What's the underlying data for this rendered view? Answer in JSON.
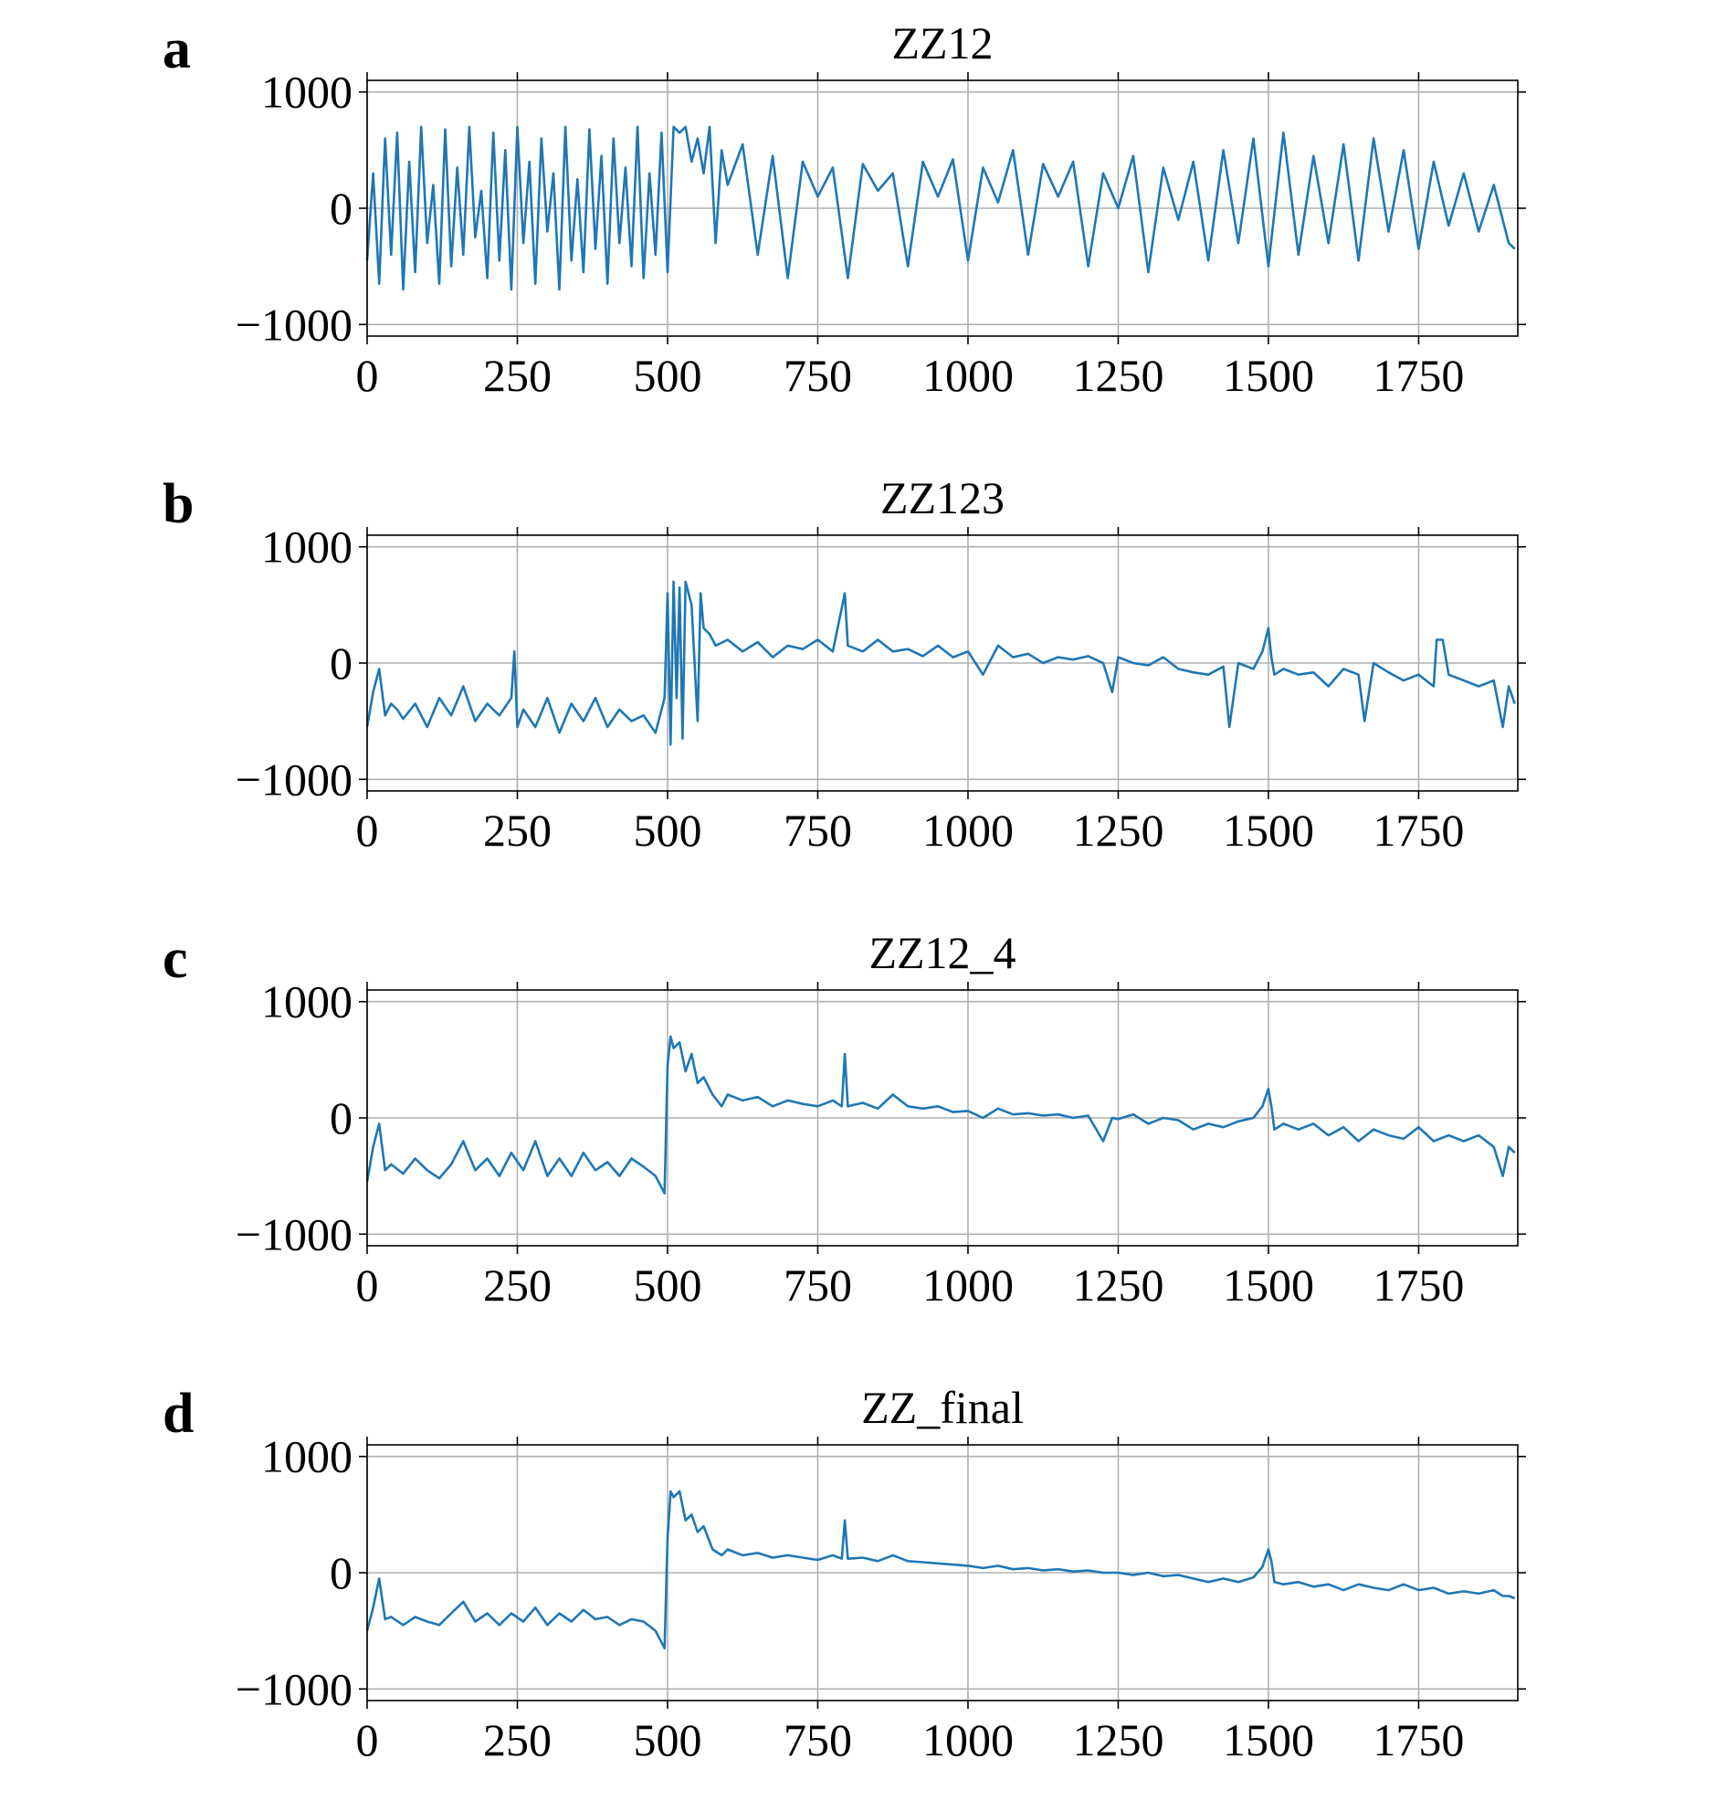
{
  "figure": {
    "color": "#1f77b4",
    "panels": [
      {
        "letter": "a",
        "title": "ZZ12",
        "xlim": [
          0,
          1915
        ],
        "ylim": [
          -1100,
          1100
        ],
        "xticks": [
          0,
          250,
          500,
          750,
          1000,
          1250,
          1500,
          1750
        ],
        "xtick_labels": [
          "0",
          "250",
          "500",
          "750",
          "1000",
          "1250",
          "1500",
          "1750"
        ],
        "yticks": [
          -1000,
          0,
          1000
        ],
        "ytick_labels": [
          "−1000",
          "0",
          "1000"
        ],
        "grid": true
      },
      {
        "letter": "b",
        "title": "ZZ123",
        "xlim": [
          0,
          1915
        ],
        "ylim": [
          -1100,
          1100
        ],
        "xticks": [
          0,
          250,
          500,
          750,
          1000,
          1250,
          1500,
          1750
        ],
        "xtick_labels": [
          "0",
          "250",
          "500",
          "750",
          "1000",
          "1250",
          "1500",
          "1750"
        ],
        "yticks": [
          -1000,
          0,
          1000
        ],
        "ytick_labels": [
          "−1000",
          "0",
          "1000"
        ],
        "grid": true
      },
      {
        "letter": "c",
        "title": "ZZ12_4",
        "xlim": [
          0,
          1915
        ],
        "ylim": [
          -1100,
          1100
        ],
        "xticks": [
          0,
          250,
          500,
          750,
          1000,
          1250,
          1500,
          1750
        ],
        "xtick_labels": [
          "0",
          "250",
          "500",
          "750",
          "1000",
          "1250",
          "1500",
          "1750"
        ],
        "yticks": [
          -1000,
          0,
          1000
        ],
        "ytick_labels": [
          "−1000",
          "0",
          "1000"
        ],
        "grid": true
      },
      {
        "letter": "d",
        "title": "ZZ_final",
        "xlim": [
          0,
          1915
        ],
        "ylim": [
          -1100,
          1100
        ],
        "xticks": [
          0,
          250,
          500,
          750,
          1000,
          1250,
          1500,
          1750
        ],
        "xtick_labels": [
          "0",
          "250",
          "500",
          "750",
          "1000",
          "1250",
          "1500",
          "1750"
        ],
        "yticks": [
          -1000,
          0,
          1000
        ],
        "ytick_labels": [
          "−1000",
          "0",
          "1000"
        ],
        "grid": true
      }
    ]
  },
  "chart_data": [
    {
      "type": "line",
      "title": "ZZ12",
      "xlabel": "",
      "ylabel": "",
      "xlim": [
        0,
        1915
      ],
      "ylim": [
        -1100,
        1100
      ],
      "grid": true,
      "series": [
        {
          "x": [
            0,
            10,
            20,
            30,
            40,
            50,
            60,
            70,
            80,
            90,
            100,
            110,
            120,
            130,
            140,
            150,
            160,
            170,
            180,
            190,
            200,
            210,
            220,
            230,
            240,
            250,
            260,
            270,
            280,
            290,
            300,
            310,
            320,
            330,
            340,
            350,
            360,
            370,
            380,
            390,
            400,
            410,
            420,
            430,
            440,
            450,
            460,
            470,
            480,
            490,
            500,
            510,
            520,
            530,
            540,
            550,
            560,
            570,
            580,
            590,
            600,
            625,
            650,
            675,
            700,
            725,
            750,
            775,
            800,
            825,
            850,
            875,
            900,
            925,
            950,
            975,
            1000,
            1025,
            1050,
            1075,
            1100,
            1125,
            1150,
            1175,
            1200,
            1225,
            1250,
            1275,
            1300,
            1325,
            1350,
            1375,
            1400,
            1425,
            1450,
            1475,
            1500,
            1525,
            1550,
            1575,
            1600,
            1625,
            1650,
            1675,
            1700,
            1725,
            1750,
            1775,
            1800,
            1825,
            1850,
            1875,
            1900,
            1910
          ],
          "y": [
            -450,
            300,
            -650,
            600,
            -400,
            650,
            -700,
            400,
            -550,
            700,
            -300,
            200,
            -650,
            680,
            -500,
            350,
            -400,
            700,
            -250,
            150,
            -600,
            650,
            -450,
            500,
            -700,
            700,
            -300,
            400,
            -650,
            600,
            -200,
            300,
            -700,
            700,
            -450,
            250,
            -550,
            680,
            -350,
            450,
            -650,
            600,
            -300,
            350,
            -500,
            700,
            -600,
            300,
            -400,
            650,
            -550,
            700,
            650,
            700,
            400,
            600,
            300,
            700,
            -300,
            500,
            200,
            550,
            -400,
            450,
            -600,
            400,
            100,
            350,
            -600,
            380,
            150,
            300,
            -500,
            400,
            100,
            420,
            -450,
            350,
            50,
            500,
            -400,
            380,
            100,
            400,
            -500,
            300,
            0,
            450,
            -550,
            350,
            -100,
            400,
            -450,
            500,
            -300,
            600,
            -500,
            650,
            -400,
            450,
            -300,
            550,
            -450,
            600,
            -200,
            500,
            -350,
            400,
            -150,
            300,
            -200,
            200,
            -300,
            -350
          ]
        }
      ]
    },
    {
      "type": "line",
      "title": "ZZ123",
      "xlabel": "",
      "ylabel": "",
      "xlim": [
        0,
        1915
      ],
      "ylim": [
        -1100,
        1100
      ],
      "grid": true,
      "series": [
        {
          "x": [
            0,
            10,
            20,
            30,
            40,
            50,
            60,
            80,
            100,
            120,
            140,
            160,
            180,
            200,
            220,
            240,
            245,
            250,
            260,
            280,
            300,
            320,
            340,
            360,
            380,
            400,
            420,
            440,
            460,
            480,
            495,
            500,
            505,
            510,
            515,
            520,
            525,
            530,
            540,
            550,
            555,
            560,
            570,
            580,
            600,
            625,
            650,
            675,
            700,
            725,
            750,
            775,
            795,
            800,
            825,
            850,
            875,
            900,
            925,
            950,
            975,
            1000,
            1025,
            1050,
            1075,
            1100,
            1125,
            1150,
            1175,
            1200,
            1225,
            1240,
            1250,
            1275,
            1300,
            1325,
            1350,
            1375,
            1400,
            1425,
            1435,
            1450,
            1475,
            1490,
            1500,
            1505,
            1510,
            1525,
            1550,
            1575,
            1600,
            1625,
            1650,
            1660,
            1675,
            1700,
            1725,
            1750,
            1775,
            1780,
            1790,
            1800,
            1825,
            1850,
            1875,
            1890,
            1900,
            1910
          ],
          "y": [
            -550,
            -250,
            -50,
            -450,
            -350,
            -400,
            -480,
            -350,
            -550,
            -300,
            -450,
            -200,
            -500,
            -350,
            -450,
            -300,
            100,
            -550,
            -400,
            -550,
            -300,
            -600,
            -350,
            -500,
            -300,
            -550,
            -400,
            -500,
            -450,
            -600,
            -300,
            600,
            -700,
            700,
            -300,
            650,
            -650,
            700,
            500,
            -500,
            600,
            300,
            250,
            150,
            200,
            100,
            180,
            50,
            150,
            120,
            200,
            100,
            600,
            150,
            100,
            200,
            100,
            120,
            60,
            150,
            50,
            100,
            -100,
            150,
            50,
            80,
            0,
            50,
            30,
            60,
            0,
            -250,
            50,
            0,
            -20,
            50,
            -50,
            -80,
            -100,
            -30,
            -550,
            0,
            -50,
            100,
            300,
            50,
            -100,
            -50,
            -100,
            -80,
            -200,
            -50,
            -100,
            -500,
            0,
            -80,
            -150,
            -100,
            -200,
            200,
            200,
            -100,
            -150,
            -200,
            -150,
            -550,
            -200,
            -350
          ]
        }
      ]
    },
    {
      "type": "line",
      "title": "ZZ12_4",
      "xlabel": "",
      "ylabel": "",
      "xlim": [
        0,
        1915
      ],
      "ylim": [
        -1100,
        1100
      ],
      "grid": true,
      "series": [
        {
          "x": [
            0,
            10,
            20,
            30,
            40,
            60,
            80,
            100,
            120,
            140,
            160,
            180,
            200,
            220,
            240,
            260,
            280,
            300,
            320,
            340,
            360,
            380,
            400,
            420,
            440,
            460,
            480,
            495,
            500,
            505,
            510,
            520,
            530,
            540,
            550,
            560,
            575,
            590,
            600,
            625,
            650,
            675,
            700,
            725,
            750,
            775,
            790,
            795,
            800,
            825,
            850,
            875,
            900,
            925,
            950,
            975,
            1000,
            1025,
            1050,
            1075,
            1100,
            1125,
            1150,
            1175,
            1200,
            1225,
            1240,
            1250,
            1275,
            1300,
            1325,
            1350,
            1375,
            1400,
            1425,
            1450,
            1475,
            1490,
            1500,
            1505,
            1510,
            1525,
            1550,
            1575,
            1600,
            1625,
            1650,
            1675,
            1700,
            1725,
            1750,
            1775,
            1800,
            1825,
            1850,
            1875,
            1890,
            1900,
            1910
          ],
          "y": [
            -550,
            -250,
            -50,
            -450,
            -400,
            -480,
            -350,
            -450,
            -520,
            -400,
            -200,
            -450,
            -350,
            -500,
            -300,
            -450,
            -200,
            -500,
            -350,
            -500,
            -300,
            -450,
            -380,
            -500,
            -350,
            -420,
            -500,
            -650,
            450,
            700,
            600,
            650,
            400,
            550,
            300,
            350,
            200,
            100,
            200,
            150,
            180,
            100,
            150,
            120,
            100,
            150,
            100,
            550,
            100,
            130,
            80,
            200,
            100,
            80,
            100,
            50,
            60,
            0,
            80,
            30,
            40,
            20,
            30,
            0,
            20,
            -200,
            0,
            -10,
            30,
            -50,
            0,
            -20,
            -100,
            -50,
            -80,
            -30,
            0,
            100,
            250,
            100,
            -100,
            -50,
            -100,
            -50,
            -150,
            -80,
            -200,
            -100,
            -150,
            -180,
            -80,
            -200,
            -150,
            -200,
            -150,
            -250,
            -500,
            -250,
            -300
          ]
        }
      ]
    },
    {
      "type": "line",
      "title": "ZZ_final",
      "xlabel": "",
      "ylabel": "",
      "xlim": [
        0,
        1915
      ],
      "ylim": [
        -1100,
        1100
      ],
      "grid": true,
      "series": [
        {
          "x": [
            0,
            10,
            20,
            30,
            40,
            60,
            80,
            100,
            120,
            140,
            160,
            180,
            200,
            220,
            240,
            260,
            280,
            300,
            320,
            340,
            360,
            380,
            400,
            420,
            440,
            460,
            480,
            495,
            500,
            505,
            510,
            520,
            530,
            540,
            550,
            560,
            575,
            590,
            600,
            625,
            650,
            675,
            700,
            725,
            750,
            775,
            790,
            795,
            800,
            825,
            850,
            875,
            900,
            925,
            950,
            975,
            1000,
            1025,
            1050,
            1075,
            1100,
            1125,
            1150,
            1175,
            1200,
            1225,
            1250,
            1275,
            1300,
            1325,
            1350,
            1375,
            1400,
            1425,
            1450,
            1475,
            1490,
            1500,
            1505,
            1510,
            1525,
            1550,
            1575,
            1600,
            1625,
            1650,
            1675,
            1700,
            1725,
            1750,
            1775,
            1800,
            1825,
            1850,
            1875,
            1890,
            1900,
            1910
          ],
          "y": [
            -500,
            -300,
            -50,
            -400,
            -380,
            -450,
            -380,
            -420,
            -450,
            -350,
            -250,
            -420,
            -350,
            -450,
            -350,
            -420,
            -300,
            -450,
            -350,
            -420,
            -320,
            -400,
            -380,
            -450,
            -400,
            -420,
            -500,
            -650,
            300,
            700,
            650,
            700,
            450,
            500,
            350,
            400,
            200,
            150,
            200,
            150,
            170,
            130,
            150,
            130,
            110,
            150,
            120,
            450,
            120,
            130,
            100,
            150,
            100,
            90,
            80,
            70,
            60,
            40,
            60,
            30,
            40,
            20,
            30,
            10,
            20,
            0,
            0,
            -20,
            0,
            -30,
            -20,
            -50,
            -80,
            -50,
            -80,
            -40,
            50,
            200,
            100,
            -80,
            -100,
            -80,
            -120,
            -100,
            -150,
            -100,
            -130,
            -150,
            -100,
            -150,
            -130,
            -180,
            -160,
            -180,
            -150,
            -200,
            -200,
            -220
          ]
        }
      ]
    }
  ]
}
